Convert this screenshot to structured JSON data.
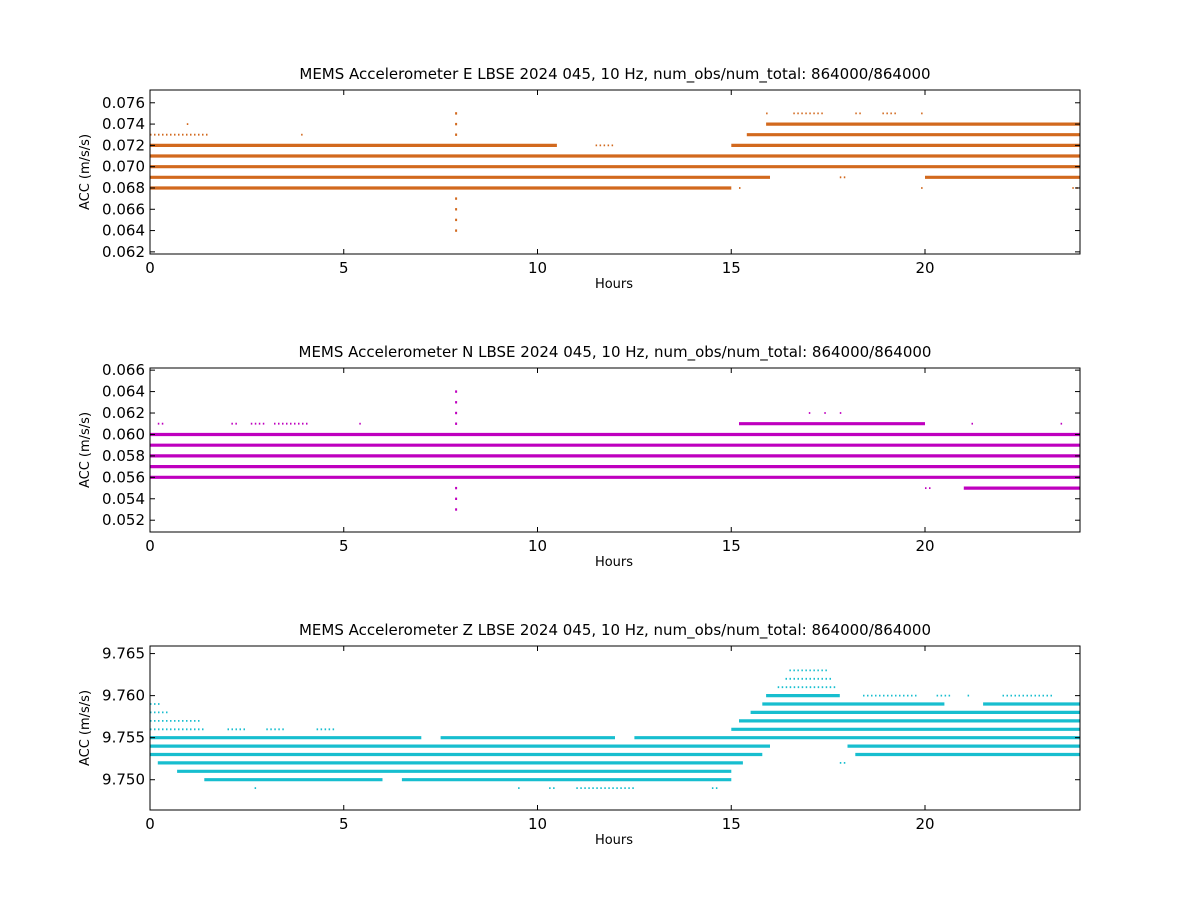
{
  "chart_data": [
    {
      "type": "scatter",
      "title": "MEMS Accelerometer E LBSE 2024 045, 10 Hz, num_obs/num_total: 864000/864000",
      "xlabel": "Hours",
      "ylabel": "ACC (m/s/s)",
      "xlim": [
        0,
        24
      ],
      "ylim": [
        0.0618,
        0.0772
      ],
      "xticks": [
        0,
        5,
        10,
        15,
        20
      ],
      "yticks": [
        0.062,
        0.064,
        0.066,
        0.068,
        0.07,
        0.072,
        0.074,
        0.076
      ],
      "ytick_labels": [
        "0.062",
        "0.064",
        "0.066",
        "0.068",
        "0.070",
        "0.072",
        "0.074",
        "0.076"
      ],
      "grid": false,
      "color": "#d2691e",
      "levels": [
        {
          "y": 0.075,
          "ranges": [
            [
              15.9,
              16.0
            ],
            [
              16.6,
              17.4
            ],
            [
              18.2,
              18.4
            ],
            [
              18.9,
              19.3
            ],
            [
              19.9,
              20.0
            ]
          ]
        },
        {
          "y": 0.074,
          "ranges": [
            [
              0.95,
              1.0
            ],
            [
              15.9,
              24.0
            ]
          ]
        },
        {
          "y": 0.073,
          "ranges": [
            [
              0.0,
              1.5
            ],
            [
              3.9,
              4.0
            ],
            [
              15.4,
              24.0
            ]
          ]
        },
        {
          "y": 0.072,
          "ranges": [
            [
              0.0,
              10.5
            ],
            [
              11.5,
              12.0
            ],
            [
              15.0,
              24.0
            ]
          ]
        },
        {
          "y": 0.071,
          "ranges": [
            [
              0.0,
              24.0
            ]
          ]
        },
        {
          "y": 0.07,
          "ranges": [
            [
              0.0,
              24.0
            ]
          ]
        },
        {
          "y": 0.069,
          "ranges": [
            [
              0.0,
              16.0
            ],
            [
              17.8,
              18.0
            ],
            [
              20.0,
              24.0
            ]
          ]
        },
        {
          "y": 0.068,
          "ranges": [
            [
              0.0,
              15.0
            ],
            [
              15.2,
              15.3
            ],
            [
              19.9,
              20.0
            ],
            [
              23.8,
              24.0
            ]
          ]
        }
      ],
      "spike": {
        "x": 7.9,
        "values": [
          0.075,
          0.074,
          0.073,
          0.067,
          0.066,
          0.065,
          0.064
        ]
      }
    },
    {
      "type": "scatter",
      "title": "MEMS Accelerometer N LBSE 2024 045, 10 Hz, num_obs/num_total: 864000/864000",
      "xlabel": "Hours",
      "ylabel": "ACC (m/s/s)",
      "xlim": [
        0,
        24
      ],
      "ylim": [
        0.0509,
        0.0662
      ],
      "xticks": [
        0,
        5,
        10,
        15,
        20
      ],
      "yticks": [
        0.052,
        0.054,
        0.056,
        0.058,
        0.06,
        0.062,
        0.064,
        0.066
      ],
      "ytick_labels": [
        "0.052",
        "0.054",
        "0.056",
        "0.058",
        "0.060",
        "0.062",
        "0.064",
        "0.066"
      ],
      "grid": false,
      "color": "#bf00bf",
      "levels": [
        {
          "y": 0.062,
          "ranges": [
            [
              17.0,
              17.1
            ],
            [
              17.4,
              17.5
            ],
            [
              17.8,
              17.9
            ]
          ]
        },
        {
          "y": 0.061,
          "ranges": [
            [
              0.2,
              0.4
            ],
            [
              2.1,
              2.3
            ],
            [
              2.6,
              3.0
            ],
            [
              3.2,
              4.1
            ],
            [
              5.4,
              5.5
            ],
            [
              15.2,
              20.0
            ],
            [
              21.2,
              21.3
            ],
            [
              23.5,
              23.6
            ]
          ]
        },
        {
          "y": 0.06,
          "ranges": [
            [
              0.0,
              24.0
            ]
          ]
        },
        {
          "y": 0.059,
          "ranges": [
            [
              0.0,
              24.0
            ]
          ]
        },
        {
          "y": 0.058,
          "ranges": [
            [
              0.0,
              24.0
            ]
          ]
        },
        {
          "y": 0.057,
          "ranges": [
            [
              0.0,
              24.0
            ]
          ]
        },
        {
          "y": 0.056,
          "ranges": [
            [
              0.0,
              24.0
            ]
          ]
        },
        {
          "y": 0.055,
          "ranges": [
            [
              20.0,
              20.2
            ],
            [
              21.0,
              24.0
            ]
          ]
        }
      ],
      "spike": {
        "x": 7.9,
        "values": [
          0.064,
          0.063,
          0.062,
          0.061,
          0.055,
          0.054,
          0.053
        ]
      }
    },
    {
      "type": "scatter",
      "title": "MEMS Accelerometer Z LBSE 2024 045, 10 Hz, num_obs/num_total: 864000/864000",
      "xlabel": "Hours",
      "ylabel": "ACC (m/s/s)",
      "xlim": [
        0,
        24
      ],
      "ylim": [
        9.7464,
        9.7659
      ],
      "xticks": [
        0,
        5,
        10,
        15,
        20
      ],
      "yticks": [
        9.75,
        9.755,
        9.76,
        9.765
      ],
      "ytick_labels": [
        "9.750",
        "9.755",
        "9.760",
        "9.765"
      ],
      "grid": false,
      "color": "#17becf",
      "levels": [
        {
          "y": 9.763,
          "ranges": [
            [
              16.5,
              17.5
            ]
          ]
        },
        {
          "y": 9.762,
          "ranges": [
            [
              16.4,
              17.6
            ]
          ]
        },
        {
          "y": 9.761,
          "ranges": [
            [
              16.2,
              17.7
            ]
          ]
        },
        {
          "y": 9.76,
          "ranges": [
            [
              15.9,
              17.8
            ],
            [
              18.4,
              19.8
            ],
            [
              20.3,
              20.7
            ],
            [
              21.1,
              21.2
            ],
            [
              22.0,
              23.3
            ]
          ]
        },
        {
          "y": 9.759,
          "ranges": [
            [
              0.0,
              0.3
            ],
            [
              15.8,
              20.5
            ],
            [
              21.5,
              24.0
            ]
          ]
        },
        {
          "y": 9.758,
          "ranges": [
            [
              0.0,
              0.5
            ],
            [
              15.5,
              24.0
            ]
          ]
        },
        {
          "y": 9.757,
          "ranges": [
            [
              0.0,
              1.3
            ],
            [
              15.2,
              24.0
            ]
          ]
        },
        {
          "y": 9.756,
          "ranges": [
            [
              0.0,
              1.4
            ],
            [
              2.0,
              2.5
            ],
            [
              3.0,
              3.5
            ],
            [
              4.3,
              4.8
            ],
            [
              15.0,
              24.0
            ]
          ]
        },
        {
          "y": 9.755,
          "ranges": [
            [
              0.0,
              7.0
            ],
            [
              7.5,
              12.0
            ],
            [
              12.5,
              24.0
            ]
          ]
        },
        {
          "y": 9.754,
          "ranges": [
            [
              0.0,
              16.0
            ],
            [
              18.0,
              24.0
            ]
          ]
        },
        {
          "y": 9.753,
          "ranges": [
            [
              0.0,
              15.8
            ],
            [
              18.2,
              24.0
            ]
          ]
        },
        {
          "y": 9.752,
          "ranges": [
            [
              0.2,
              15.3
            ],
            [
              17.8,
              18.0
            ]
          ]
        },
        {
          "y": 9.751,
          "ranges": [
            [
              0.7,
              15.0
            ]
          ]
        },
        {
          "y": 9.75,
          "ranges": [
            [
              1.4,
              6.0
            ],
            [
              6.5,
              15.0
            ]
          ]
        },
        {
          "y": 9.749,
          "ranges": [
            [
              2.7,
              2.8
            ],
            [
              9.5,
              9.6
            ],
            [
              10.3,
              10.5
            ],
            [
              11.0,
              12.5
            ],
            [
              14.5,
              14.7
            ]
          ]
        }
      ]
    }
  ]
}
